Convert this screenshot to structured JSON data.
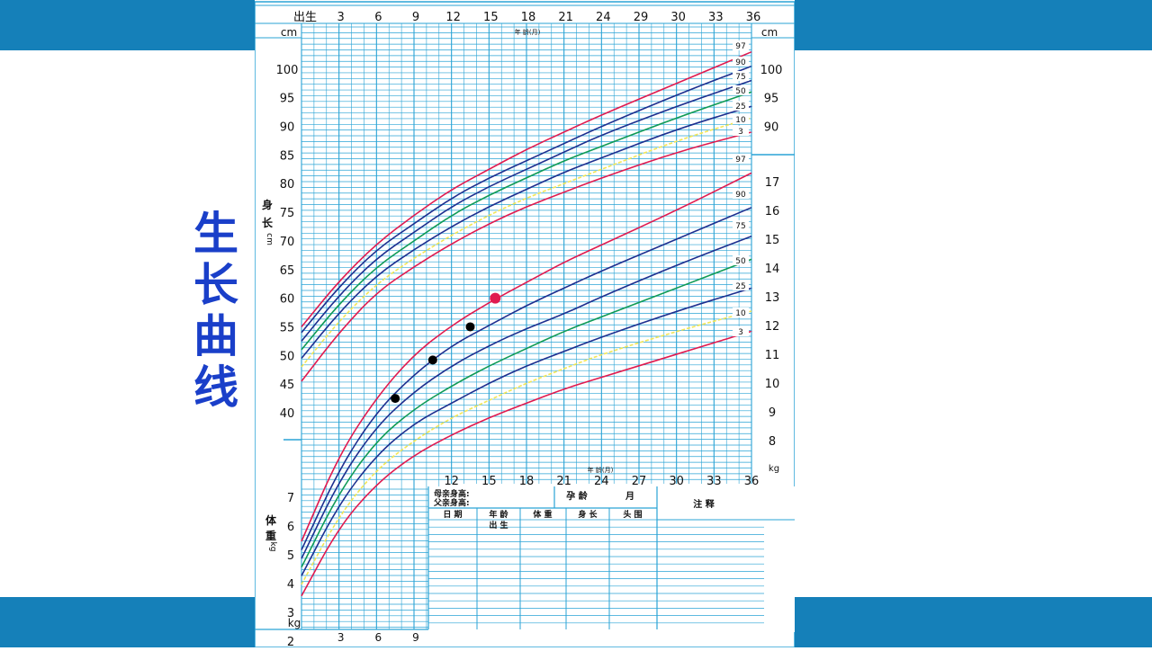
{
  "slide": {
    "title": "生长曲线",
    "colors": {
      "band": "#1580b9",
      "title": "#1a3fc9",
      "grid": "#2aa3d5",
      "red": "#e01a4f",
      "blue": "#1d2f8f",
      "green": "#0f9a55",
      "yellow": "#f2e655"
    }
  },
  "chart_data": {
    "type": "line",
    "title": "",
    "xlabel": "年 龄(月)",
    "x_ticks_top": [
      "出生",
      "3",
      "6",
      "9",
      "12",
      "15",
      "18",
      "21",
      "24",
      "29",
      "30",
      "33",
      "36"
    ],
    "x_ticks_mid": [
      "12",
      "15",
      "18",
      "21",
      "24",
      "27",
      "30",
      "33",
      "36"
    ],
    "x_ticks_bottom": [
      "3",
      "6",
      "9"
    ],
    "height_axis": {
      "label": "身 长 cm",
      "unit": "cm",
      "ticks": [
        "40",
        "45",
        "50",
        "55",
        "60",
        "65",
        "70",
        "75",
        "80",
        "85",
        "90",
        "95",
        "100"
      ],
      "ylim": [
        40,
        100
      ]
    },
    "height_right_ticks": [
      "90",
      "95",
      "100"
    ],
    "weight_axis_left": {
      "label": "体 重 kg",
      "unit": "kg",
      "ticks": [
        "2",
        "3",
        "4",
        "5",
        "6",
        "7"
      ]
    },
    "weight_axis_right": {
      "unit": "kg",
      "ticks": [
        "8",
        "9",
        "10",
        "11",
        "12",
        "13",
        "14",
        "15",
        "16",
        "17"
      ]
    },
    "percentile_labels": [
      "97",
      "90",
      "75",
      "50",
      "25",
      "10",
      "3"
    ],
    "height_series": [
      {
        "name": "97",
        "color": "red",
        "values": [
          [
            0,
            55
          ],
          [
            3,
            63
          ],
          [
            6,
            69.5
          ],
          [
            9,
            74.5
          ],
          [
            12,
            79
          ],
          [
            15,
            82.5
          ],
          [
            18,
            86
          ],
          [
            21,
            89
          ],
          [
            24,
            92
          ],
          [
            30,
            97.5
          ],
          [
            36,
            103
          ]
        ]
      },
      {
        "name": "90",
        "color": "blue",
        "values": [
          [
            0,
            54
          ],
          [
            3,
            62
          ],
          [
            6,
            68.5
          ],
          [
            9,
            73
          ],
          [
            12,
            77.5
          ],
          [
            15,
            81
          ],
          [
            18,
            84
          ],
          [
            21,
            87
          ],
          [
            24,
            90
          ],
          [
            30,
            95.5
          ],
          [
            36,
            100.5
          ]
        ]
      },
      {
        "name": "75",
        "color": "blue",
        "values": [
          [
            0,
            52.5
          ],
          [
            3,
            60.5
          ],
          [
            6,
            67
          ],
          [
            9,
            71.5
          ],
          [
            12,
            76
          ],
          [
            15,
            79.5
          ],
          [
            18,
            82.5
          ],
          [
            21,
            85.5
          ],
          [
            24,
            88.5
          ],
          [
            30,
            93.5
          ],
          [
            36,
            98
          ]
        ]
      },
      {
        "name": "50",
        "color": "green",
        "values": [
          [
            0,
            51
          ],
          [
            3,
            59
          ],
          [
            6,
            65.5
          ],
          [
            9,
            70
          ],
          [
            12,
            74.5
          ],
          [
            15,
            78
          ],
          [
            18,
            81
          ],
          [
            21,
            84
          ],
          [
            24,
            86.5
          ],
          [
            30,
            91.5
          ],
          [
            36,
            96
          ]
        ]
      },
      {
        "name": "25",
        "color": "blue",
        "values": [
          [
            0,
            49.5
          ],
          [
            3,
            57.5
          ],
          [
            6,
            64
          ],
          [
            9,
            68.5
          ],
          [
            12,
            72.5
          ],
          [
            15,
            76
          ],
          [
            18,
            79
          ],
          [
            21,
            82
          ],
          [
            24,
            84.5
          ],
          [
            30,
            89.5
          ],
          [
            36,
            93.5
          ]
        ]
      },
      {
        "name": "10",
        "color": "yellow",
        "values": [
          [
            0,
            48
          ],
          [
            3,
            56
          ],
          [
            6,
            62.5
          ],
          [
            9,
            67
          ],
          [
            12,
            71
          ],
          [
            15,
            74.5
          ],
          [
            18,
            77.5
          ],
          [
            21,
            80
          ],
          [
            24,
            82.5
          ],
          [
            30,
            87.5
          ],
          [
            36,
            91.5
          ]
        ]
      },
      {
        "name": "3",
        "color": "red",
        "values": [
          [
            0,
            45.5
          ],
          [
            3,
            54
          ],
          [
            6,
            61
          ],
          [
            9,
            65.5
          ],
          [
            12,
            69.5
          ],
          [
            15,
            73
          ],
          [
            18,
            76
          ],
          [
            21,
            78.5
          ],
          [
            24,
            81
          ],
          [
            30,
            85.5
          ],
          [
            36,
            89
          ]
        ]
      }
    ],
    "weight_series": [
      {
        "name": "97",
        "color": "red",
        "values": [
          [
            0,
            4.5
          ],
          [
            3,
            7.5
          ],
          [
            6,
            9.5
          ],
          [
            9,
            11
          ],
          [
            12,
            12
          ],
          [
            15,
            12.8
          ],
          [
            18,
            13.5
          ],
          [
            21,
            14.2
          ],
          [
            24,
            14.8
          ],
          [
            30,
            16
          ],
          [
            36,
            17.3
          ]
        ]
      },
      {
        "name": "90",
        "color": "blue",
        "values": [
          [
            0,
            4.2
          ],
          [
            3,
            7
          ],
          [
            6,
            9
          ],
          [
            9,
            10.3
          ],
          [
            12,
            11.3
          ],
          [
            15,
            12
          ],
          [
            18,
            12.7
          ],
          [
            21,
            13.3
          ],
          [
            24,
            13.9
          ],
          [
            30,
            15
          ],
          [
            36,
            16.1
          ]
        ]
      },
      {
        "name": "75",
        "color": "blue",
        "values": [
          [
            0,
            3.9
          ],
          [
            3,
            6.6
          ],
          [
            6,
            8.5
          ],
          [
            9,
            9.7
          ],
          [
            12,
            10.6
          ],
          [
            15,
            11.3
          ],
          [
            18,
            11.9
          ],
          [
            21,
            12.4
          ],
          [
            24,
            13
          ],
          [
            30,
            14.1
          ],
          [
            36,
            15.1
          ]
        ]
      },
      {
        "name": "50",
        "color": "green",
        "values": [
          [
            0,
            3.6
          ],
          [
            3,
            6.2
          ],
          [
            6,
            8
          ],
          [
            9,
            9.1
          ],
          [
            12,
            9.9
          ],
          [
            15,
            10.6
          ],
          [
            18,
            11.2
          ],
          [
            21,
            11.8
          ],
          [
            24,
            12.3
          ],
          [
            30,
            13.3
          ],
          [
            36,
            14.3
          ]
        ]
      },
      {
        "name": "25",
        "color": "blue",
        "values": [
          [
            0,
            3.3
          ],
          [
            3,
            5.8
          ],
          [
            6,
            7.5
          ],
          [
            9,
            8.6
          ],
          [
            12,
            9.3
          ],
          [
            15,
            10
          ],
          [
            18,
            10.6
          ],
          [
            21,
            11.1
          ],
          [
            24,
            11.6
          ],
          [
            30,
            12.5
          ],
          [
            36,
            13.3
          ]
        ]
      },
      {
        "name": "10",
        "color": "yellow",
        "values": [
          [
            0,
            3
          ],
          [
            3,
            5.4
          ],
          [
            6,
            7
          ],
          [
            9,
            8
          ],
          [
            12,
            8.8
          ],
          [
            15,
            9.4
          ],
          [
            18,
            10
          ],
          [
            21,
            10.5
          ],
          [
            24,
            11
          ],
          [
            30,
            11.8
          ],
          [
            36,
            12.5
          ]
        ]
      },
      {
        "name": "3",
        "color": "red",
        "values": [
          [
            0,
            2.6
          ],
          [
            3,
            5
          ],
          [
            6,
            6.5
          ],
          [
            9,
            7.5
          ],
          [
            12,
            8.2
          ],
          [
            15,
            8.8
          ],
          [
            18,
            9.3
          ],
          [
            21,
            9.8
          ],
          [
            24,
            10.2
          ],
          [
            30,
            11
          ],
          [
            36,
            11.8
          ]
        ]
      }
    ],
    "points": [
      {
        "x": 7.5,
        "y": 42.5,
        "color": "black"
      },
      {
        "x": 10.5,
        "y": 49.2,
        "color": "black"
      },
      {
        "x": 13.5,
        "y": 55,
        "color": "black"
      },
      {
        "x": 15.5,
        "y": 60,
        "color": "red"
      }
    ],
    "record_table": {
      "parents": [
        "母亲身高:",
        "父亲身高:"
      ],
      "gestation": [
        "孕 龄",
        "月"
      ],
      "notes_label": "注 释",
      "headers": [
        "日 期",
        "年 龄",
        "体 重",
        "身 长",
        "头 围"
      ],
      "first_row_age": "出 生"
    }
  }
}
